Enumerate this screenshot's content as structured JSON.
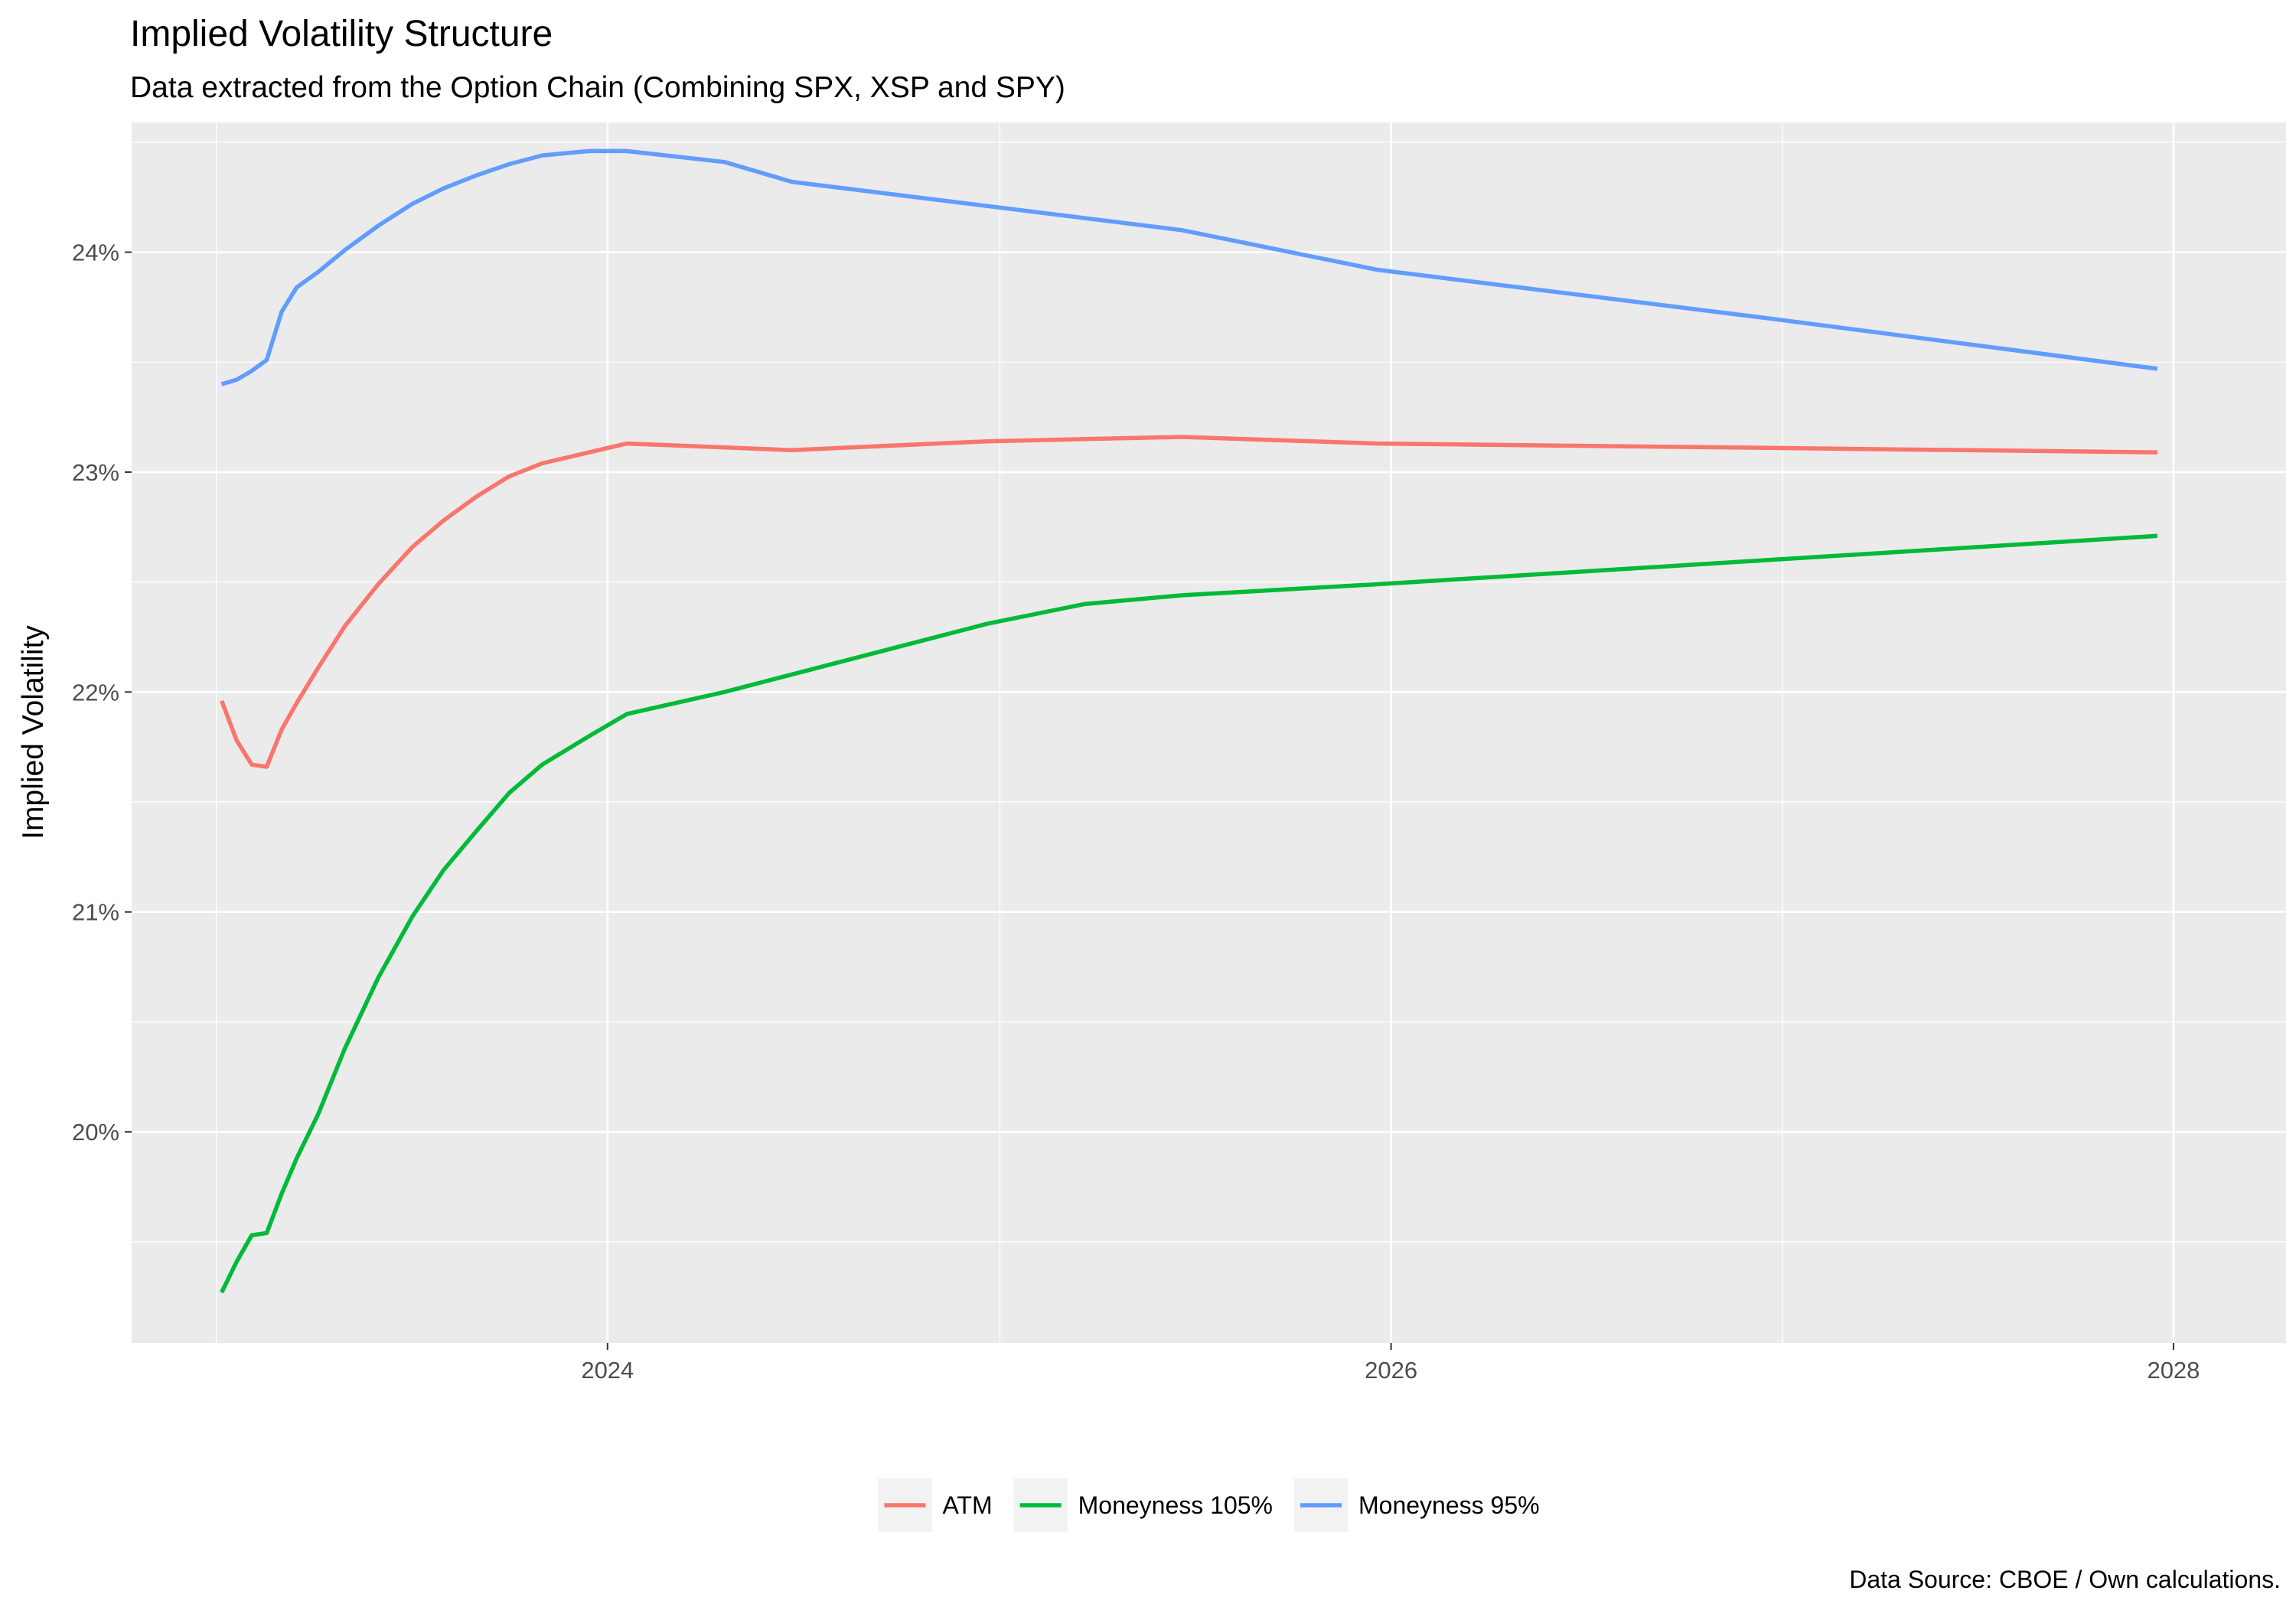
{
  "chart_data": {
    "type": "line",
    "title": "Implied Volatility Structure",
    "subtitle": "Data extracted from the Option Chain (Combining SPX, XSP and SPY)",
    "caption": "Data Source: CBOE / Own calculations.",
    "xlabel": "",
    "ylabel": "Implied Volatility",
    "x_ticks": [
      "2024",
      "2026",
      "2028"
    ],
    "y_ticks": [
      "20%",
      "21%",
      "22%",
      "23%",
      "24%"
    ],
    "xlim": [
      "2022-10-14",
      "2028-04-15"
    ],
    "ylim": [
      0.1904,
      0.2459
    ],
    "grid": true,
    "legend_position": "bottom",
    "series": [
      {
        "name": "ATM",
        "color": "#F8766D",
        "points": [
          [
            "2023-01-06",
            0.2196
          ],
          [
            "2023-01-20",
            0.2178
          ],
          [
            "2023-02-03",
            0.2167
          ],
          [
            "2023-02-17",
            0.2166
          ],
          [
            "2023-03-03",
            0.2183
          ],
          [
            "2023-03-17",
            0.2195
          ],
          [
            "2023-04-06",
            0.2211
          ],
          [
            "2023-05-01",
            0.223
          ],
          [
            "2023-06-01",
            0.2249
          ],
          [
            "2023-07-03",
            0.2266
          ],
          [
            "2023-08-01",
            0.2278
          ],
          [
            "2023-09-01",
            0.2289
          ],
          [
            "2023-10-01",
            0.2298
          ],
          [
            "2023-11-01",
            0.2304
          ],
          [
            "2023-12-15",
            0.2309
          ],
          [
            "2024-01-19",
            0.2313
          ],
          [
            "2024-06-21",
            0.231
          ],
          [
            "2024-12-20",
            0.2314
          ],
          [
            "2025-03-21",
            0.2315
          ],
          [
            "2025-06-20",
            0.2316
          ],
          [
            "2025-12-19",
            0.2313
          ],
          [
            "2026-12-18",
            0.2311
          ],
          [
            "2027-12-17",
            0.2309
          ]
        ]
      },
      {
        "name": "Moneyness 105%",
        "color": "#00BA38",
        "points": [
          [
            "2023-01-06",
            0.1927
          ],
          [
            "2023-01-20",
            0.1941
          ],
          [
            "2023-02-03",
            0.1953
          ],
          [
            "2023-02-17",
            0.1954
          ],
          [
            "2023-03-03",
            0.1972
          ],
          [
            "2023-03-17",
            0.1988
          ],
          [
            "2023-04-06",
            0.2008
          ],
          [
            "2023-05-01",
            0.2038
          ],
          [
            "2023-06-01",
            0.207
          ],
          [
            "2023-07-03",
            0.2098
          ],
          [
            "2023-08-01",
            0.2119
          ],
          [
            "2023-09-01",
            0.2137
          ],
          [
            "2023-10-01",
            0.2154
          ],
          [
            "2023-11-01",
            0.2167
          ],
          [
            "2023-12-15",
            0.218
          ],
          [
            "2024-01-19",
            0.219
          ],
          [
            "2024-04-19",
            0.22
          ],
          [
            "2024-12-20",
            0.2231
          ],
          [
            "2025-03-21",
            0.224
          ],
          [
            "2025-06-20",
            0.2244
          ],
          [
            "2025-12-19",
            0.2249
          ],
          [
            "2026-12-18",
            0.226
          ],
          [
            "2027-12-17",
            0.2271
          ]
        ]
      },
      {
        "name": "Moneyness 95%",
        "color": "#619CFF",
        "points": [
          [
            "2023-01-06",
            0.234
          ],
          [
            "2023-01-20",
            0.2342
          ],
          [
            "2023-02-03",
            0.2346
          ],
          [
            "2023-02-17",
            0.2351
          ],
          [
            "2023-03-03",
            0.2373
          ],
          [
            "2023-03-17",
            0.2384
          ],
          [
            "2023-04-06",
            0.2391
          ],
          [
            "2023-05-01",
            0.2401
          ],
          [
            "2023-06-01",
            0.2412
          ],
          [
            "2023-07-03",
            0.2422
          ],
          [
            "2023-08-01",
            0.2429
          ],
          [
            "2023-09-01",
            0.2435
          ],
          [
            "2023-10-01",
            0.244
          ],
          [
            "2023-11-01",
            0.2444
          ],
          [
            "2023-12-15",
            0.2446
          ],
          [
            "2024-01-19",
            0.2446
          ],
          [
            "2024-04-19",
            0.2441
          ],
          [
            "2024-06-21",
            0.2432
          ],
          [
            "2024-12-20",
            0.2421
          ],
          [
            "2025-06-20",
            0.241
          ],
          [
            "2025-12-19",
            0.2392
          ],
          [
            "2026-12-18",
            0.237
          ],
          [
            "2027-12-17",
            0.2347
          ]
        ]
      }
    ]
  }
}
